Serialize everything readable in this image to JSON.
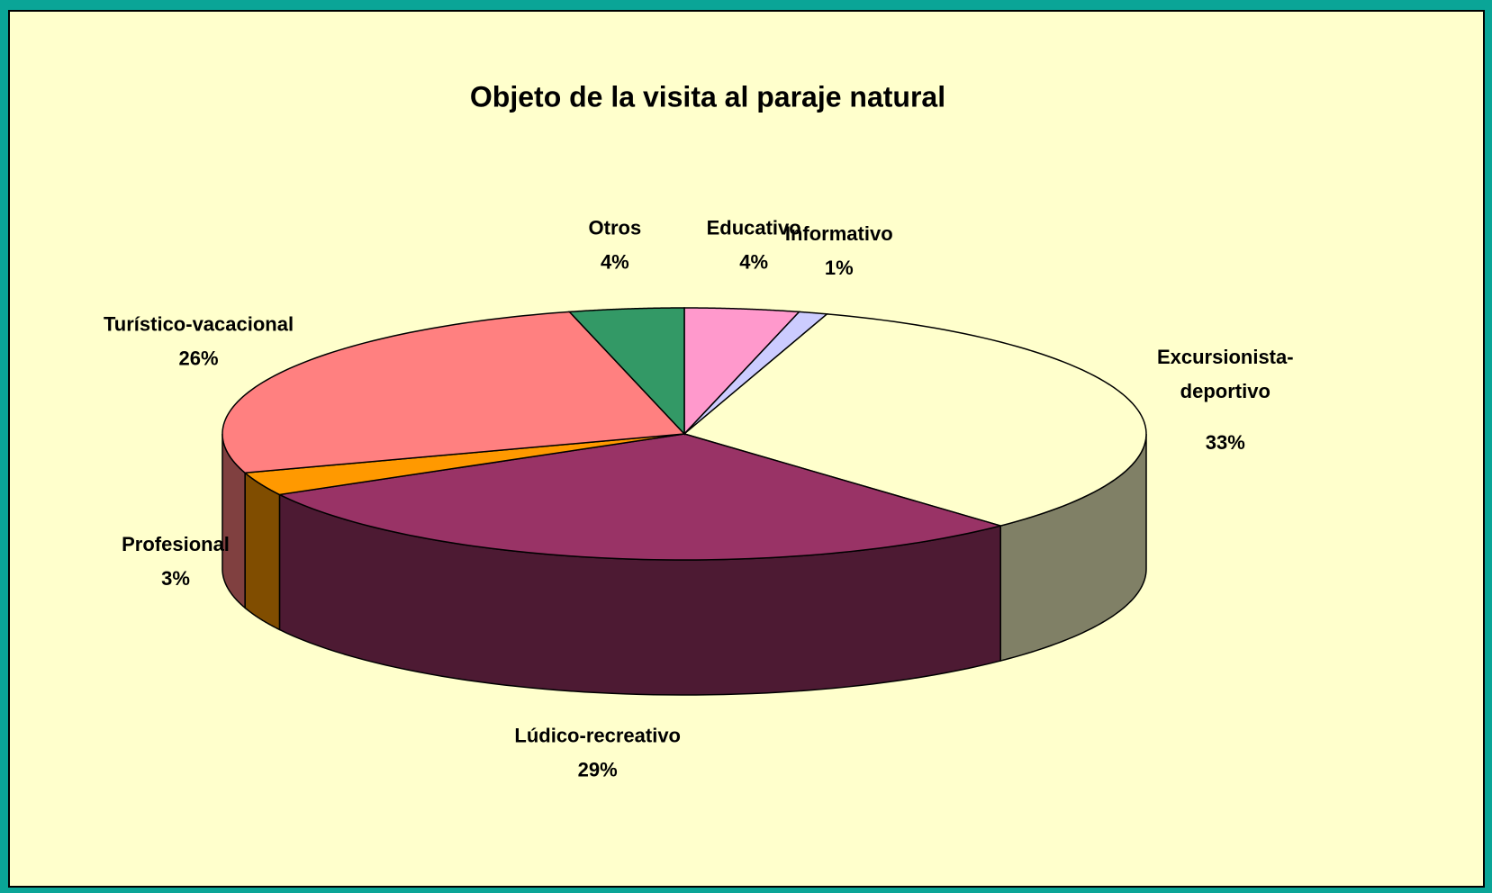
{
  "chart_data": {
    "type": "pie3d",
    "title": "Objeto de la visita al paraje natural",
    "categories": [
      "Educativo",
      "Informativo",
      "Excursionista-deportivo",
      "Lúdico-recreativo",
      "Profesional",
      "Turístico-vacacional",
      "Otros"
    ],
    "values": [
      4,
      1,
      33,
      29,
      3,
      26,
      4
    ],
    "value_labels": [
      "4%",
      "1%",
      "33%",
      "29%",
      "3%",
      "26%",
      "4%"
    ],
    "colors": [
      "#ff99cc",
      "#ccccff",
      "#ffffcc",
      "#993366",
      "#ff9900",
      "#ff8080",
      "#339966"
    ]
  }
}
